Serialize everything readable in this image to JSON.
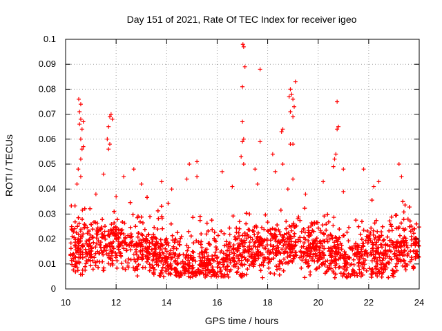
{
  "chart_data": {
    "type": "scatter",
    "title": "Day 151 of 2021, Rate Of TEC Index for receiver igeo",
    "xlabel": "GPS time / hours",
    "ylabel": "ROTI / TECUs",
    "xlim": [
      10,
      24
    ],
    "ylim": [
      0,
      0.1
    ],
    "xticks": [
      10,
      12,
      14,
      16,
      18,
      20,
      22,
      24
    ],
    "xtick_labels": [
      "10",
      "12",
      "14",
      "16",
      "18",
      "20",
      "22",
      "24"
    ],
    "yticks": [
      0,
      0.01,
      0.02,
      0.03,
      0.04,
      0.05,
      0.06,
      0.07,
      0.08,
      0.09,
      0.1
    ],
    "ytick_labels": [
      "0",
      "0.01",
      "0.02",
      "0.03",
      "0.04",
      "0.05",
      "0.06",
      "0.07",
      "0.08",
      "0.09",
      "0.1"
    ],
    "grid": true,
    "marker": "plus",
    "color": "#ff0000",
    "series": [
      {
        "points": [
          [
            17.02,
            0.098
          ],
          [
            17.05,
            0.097
          ],
          [
            17.1,
            0.089
          ],
          [
            17.7,
            0.088
          ],
          [
            17.0,
            0.081
          ],
          [
            19.1,
            0.083
          ],
          [
            18.9,
            0.08
          ],
          [
            18.95,
            0.078
          ],
          [
            18.85,
            0.077
          ],
          [
            19.0,
            0.076
          ],
          [
            20.75,
            0.075
          ],
          [
            10.52,
            0.076
          ],
          [
            10.6,
            0.074
          ],
          [
            10.55,
            0.071
          ],
          [
            19.05,
            0.073
          ],
          [
            19.0,
            0.069
          ],
          [
            18.9,
            0.071
          ],
          [
            11.8,
            0.07
          ],
          [
            11.75,
            0.069
          ],
          [
            11.85,
            0.068
          ],
          [
            10.6,
            0.068
          ],
          [
            10.55,
            0.066
          ],
          [
            10.7,
            0.067
          ],
          [
            17.0,
            0.067
          ],
          [
            20.8,
            0.065
          ],
          [
            20.75,
            0.064
          ],
          [
            10.65,
            0.064
          ],
          [
            11.7,
            0.065
          ],
          [
            18.6,
            0.064
          ],
          [
            18.55,
            0.063
          ],
          [
            10.6,
            0.06
          ],
          [
            11.65,
            0.06
          ],
          [
            11.75,
            0.058
          ],
          [
            17.05,
            0.06
          ],
          [
            17.0,
            0.059
          ],
          [
            18.9,
            0.058
          ],
          [
            19.0,
            0.058
          ],
          [
            17.7,
            0.059
          ],
          [
            10.7,
            0.057
          ],
          [
            10.65,
            0.056
          ],
          [
            11.7,
            0.056
          ],
          [
            18.2,
            0.054
          ],
          [
            20.7,
            0.054
          ],
          [
            20.65,
            0.052
          ],
          [
            10.6,
            0.052
          ],
          [
            16.95,
            0.053
          ],
          [
            18.6,
            0.05
          ],
          [
            17.05,
            0.05
          ],
          [
            15.2,
            0.051
          ],
          [
            14.9,
            0.05
          ],
          [
            23.2,
            0.05
          ],
          [
            20.6,
            0.049
          ],
          [
            12.7,
            0.048
          ],
          [
            10.5,
            0.048
          ],
          [
            11.5,
            0.046
          ],
          [
            16.2,
            0.047
          ],
          [
            17.5,
            0.048
          ],
          [
            21.8,
            0.048
          ],
          [
            21.0,
            0.048
          ],
          [
            18.3,
            0.047
          ],
          [
            23.3,
            0.045
          ],
          [
            22.4,
            0.043
          ],
          [
            10.6,
            0.045
          ],
          [
            12.3,
            0.045
          ],
          [
            15.2,
            0.045
          ],
          [
            14.8,
            0.044
          ],
          [
            19.0,
            0.044
          ],
          [
            20.2,
            0.043
          ],
          [
            17.6,
            0.042
          ],
          [
            13.0,
            0.042
          ],
          [
            13.8,
            0.043
          ],
          [
            10.45,
            0.042
          ],
          [
            22.2,
            0.041
          ],
          [
            16.6,
            0.041
          ],
          [
            14.2,
            0.04
          ],
          [
            18.8,
            0.04
          ],
          [
            21.0,
            0.039
          ],
          [
            19.5,
            0.038
          ],
          [
            11.2,
            0.038
          ],
          [
            12.0,
            0.037
          ]
        ]
      }
    ]
  }
}
